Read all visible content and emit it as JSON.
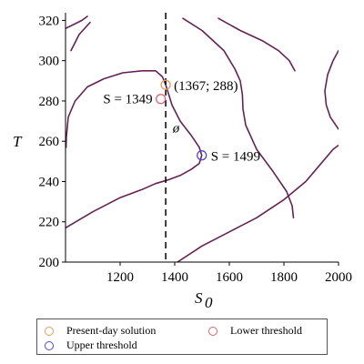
{
  "chart_data": {
    "type": "line",
    "title": "",
    "xlabel": "S",
    "xlabel_sub": "0",
    "ylabel": "T",
    "xlim": [
      1000,
      2000
    ],
    "ylim": [
      200,
      322
    ],
    "x_ticks": [
      1200,
      1400,
      1600,
      1800,
      2000
    ],
    "y_ticks": [
      200,
      220,
      240,
      260,
      280,
      300,
      320
    ],
    "grid": false,
    "series": [
      {
        "x": [
          1020,
          1050,
          1090
        ],
        "y": [
          305,
          313,
          319
        ]
      },
      {
        "x": [
          1000,
          1030,
          1060,
          1080
        ],
        "y": [
          316,
          318,
          320,
          322
        ]
      },
      {
        "x": [
          1002,
          1003,
          1010,
          1035,
          1080,
          1140,
          1210,
          1280,
          1330,
          1355,
          1367,
          1390,
          1420,
          1460,
          1490,
          1499,
          1490,
          1460,
          1420,
          1380,
          1330,
          1280,
          1200,
          1100,
          1000
        ],
        "y": [
          257,
          262,
          272,
          280,
          287,
          291,
          294,
          295,
          295,
          292,
          288,
          278,
          270,
          263,
          257,
          253,
          249,
          246,
          243,
          241,
          239,
          236,
          232,
          225,
          217
        ]
      },
      {
        "x": [
          1430,
          1500,
          1580,
          1620,
          1640,
          1648,
          1650,
          1660,
          1700,
          1760,
          1810,
          1830,
          1835
        ],
        "y": [
          321,
          315,
          305,
          296,
          290,
          283,
          276,
          268,
          256,
          245,
          235,
          228,
          222
        ]
      },
      {
        "x": [
          1560,
          1640,
          1720,
          1780,
          1820,
          1840
        ],
        "y": [
          321,
          315,
          310,
          305,
          300,
          295
        ]
      },
      {
        "x": [
          1410,
          1500,
          1600,
          1700,
          1800,
          1880,
          1930,
          1980,
          2000
        ],
        "y": [
          200,
          208,
          215,
          222,
          231,
          240,
          248,
          256,
          258
        ]
      },
      {
        "x": [
          2000,
          1980,
          1960,
          1950,
          1955,
          1970,
          2000
        ],
        "y": [
          305,
          300,
          293,
          285,
          278,
          272,
          266
        ]
      }
    ],
    "reference_line": {
      "x": 1367,
      "style": "dashed"
    },
    "points": [
      {
        "x": 1367,
        "y": 288,
        "color": "#e69a5a",
        "label": "(1367; 288)",
        "legend": "Present-day solution"
      },
      {
        "x": 1349,
        "y": 281,
        "color": "#e0606a",
        "label": "S = 1349",
        "legend": "Lower threshold"
      },
      {
        "x": 1499,
        "y": 253,
        "color": "#4a4adb",
        "label": "S = 1499",
        "legend": "Upper threshold"
      }
    ],
    "annotations": [
      {
        "text": "ø",
        "x": 1405,
        "y": 267
      }
    ],
    "legend_position": "bottom"
  }
}
